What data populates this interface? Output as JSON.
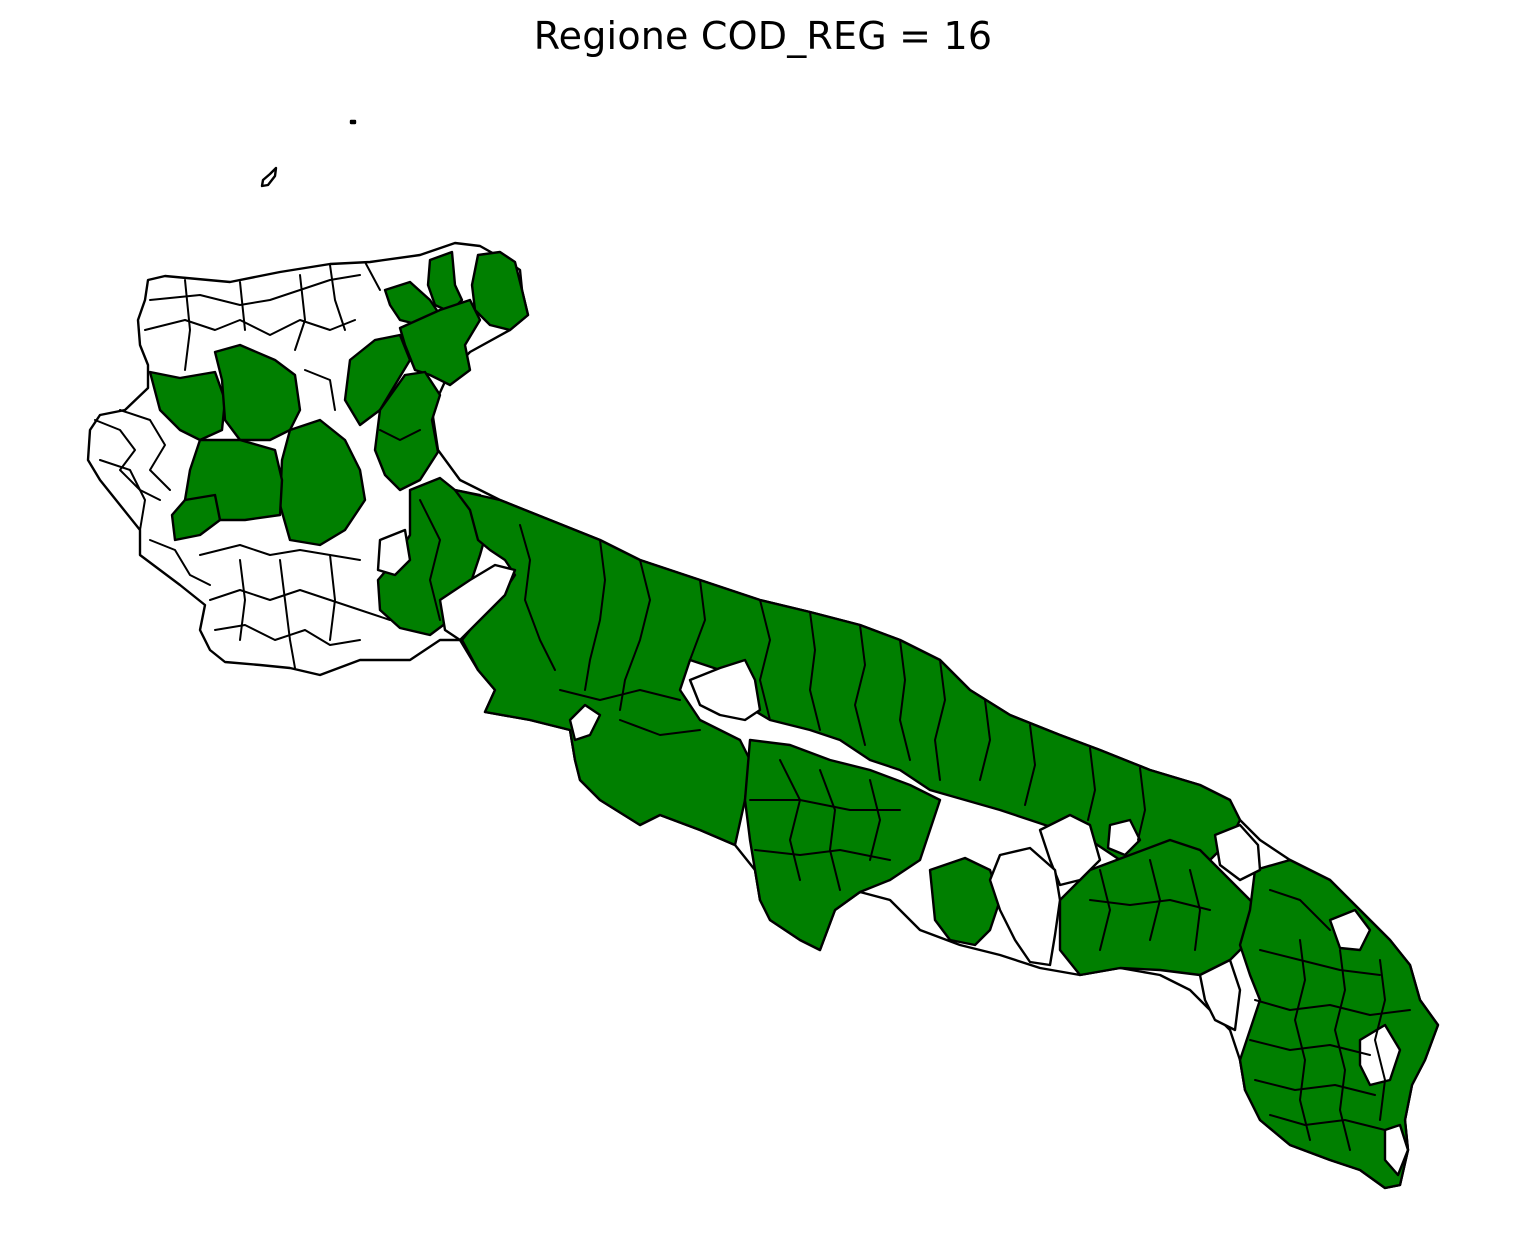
{
  "title": "Regione COD_REG = 16",
  "colors": {
    "highlighted": "#007f00",
    "not_highlighted": "#ffffff",
    "border": "#000000",
    "background": "#ffffff"
  },
  "legend": null
}
